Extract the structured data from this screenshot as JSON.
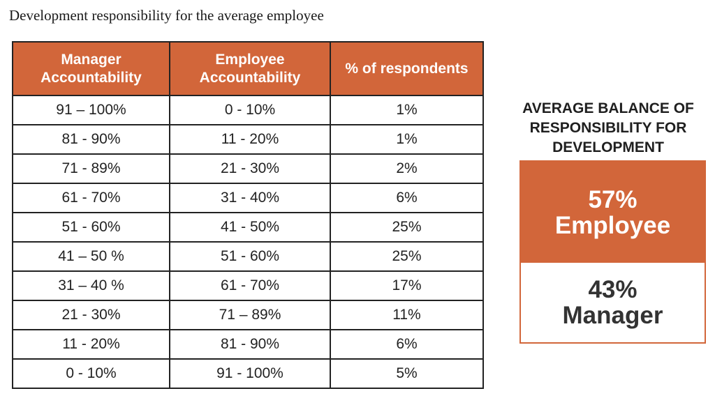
{
  "title": "Development responsibility for the average employee",
  "table": {
    "headers": [
      "Manager Accountability",
      "Employee Accountability",
      "% of respondents"
    ],
    "rows": [
      [
        "91 – 100%",
        "0 - 10%",
        "1%"
      ],
      [
        "81 - 90%",
        "11 - 20%",
        "1%"
      ],
      [
        "71 - 89%",
        "21 - 30%",
        "2%"
      ],
      [
        "61 - 70%",
        "31 - 40%",
        "6%"
      ],
      [
        "51 - 60%",
        "41 - 50%",
        "25%"
      ],
      [
        "41 – 50 %",
        "51 - 60%",
        "25%"
      ],
      [
        "31 – 40 %",
        "61 - 70%",
        "17%"
      ],
      [
        "21 - 30%",
        "71 – 89%",
        "11%"
      ],
      [
        "11 - 20%",
        "81 - 90%",
        "6%"
      ],
      [
        "0 - 10%",
        "91 - 100%",
        "5%"
      ]
    ]
  },
  "summary": {
    "heading": "AVERAGE BALANCE OF RESPONSIBILITY FOR DEVELOPMENT",
    "employee_pct": "57%",
    "employee_label": "Employee",
    "manager_pct": "43%",
    "manager_label": "Manager"
  },
  "colors": {
    "accent": "#d2663a",
    "text": "#222222"
  }
}
